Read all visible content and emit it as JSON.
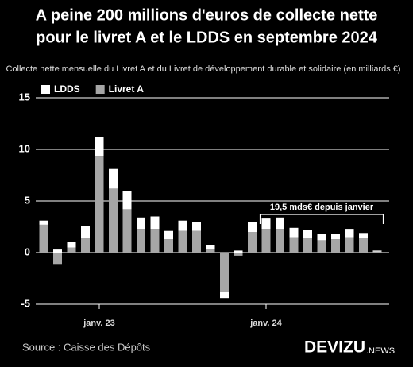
{
  "chart_data": {
    "type": "bar",
    "stacked": true,
    "title": [
      "A peine 200 millions d'euros de collecte nette",
      "pour le livret A et le LDDS en septembre 2024"
    ],
    "subtitle": "Collecte nette mensuelle du Livret A et du Livret de développement durable et solidaire (en milliards €)",
    "categories": [
      null,
      null,
      null,
      null,
      "janv. 23",
      null,
      null,
      null,
      null,
      null,
      null,
      null,
      null,
      null,
      null,
      null,
      "janv. 24",
      null,
      null,
      null,
      null,
      null,
      null,
      null,
      null
    ],
    "series": [
      {
        "name": "Livret A",
        "color": "#a6a6a6",
        "values": [
          2.7,
          -1.1,
          0.5,
          1.4,
          9.3,
          6.2,
          4.2,
          2.3,
          2.3,
          1.3,
          2.1,
          2.1,
          0.3,
          -3.8,
          -0.3,
          2.0,
          2.3,
          2.3,
          1.5,
          1.4,
          1.2,
          1.3,
          1.5,
          1.4,
          0.1
        ]
      },
      {
        "name": "LDDS",
        "color": "#ffffff",
        "values": [
          0.4,
          0.3,
          0.5,
          1.2,
          1.9,
          1.9,
          1.8,
          1.1,
          1.2,
          0.8,
          1.0,
          0.9,
          0.4,
          -0.6,
          0.2,
          1.0,
          1.0,
          1.1,
          0.9,
          0.8,
          0.6,
          0.5,
          0.8,
          0.5,
          0.1
        ]
      }
    ],
    "ylim": [
      -5,
      15
    ],
    "yticks": [
      -5,
      0,
      5,
      10,
      15
    ],
    "grid": true,
    "annotation": "19,5 mds€ depuis janvier",
    "source": "Source : Caisse des Dépôts",
    "brand": [
      "DEVIZU",
      ".NEWS"
    ]
  }
}
